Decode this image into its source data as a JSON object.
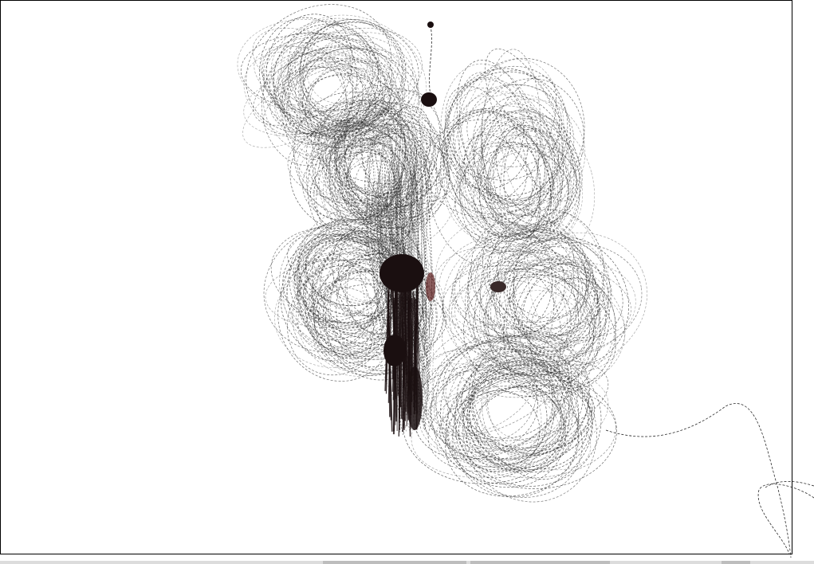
{
  "canvas": {
    "background": "#ffffff",
    "frame_color": "#000000",
    "stroke_color": "#2b2b2b",
    "blob_color": "#1a0f10",
    "blob_accent": "#5a1a1a"
  }
}
